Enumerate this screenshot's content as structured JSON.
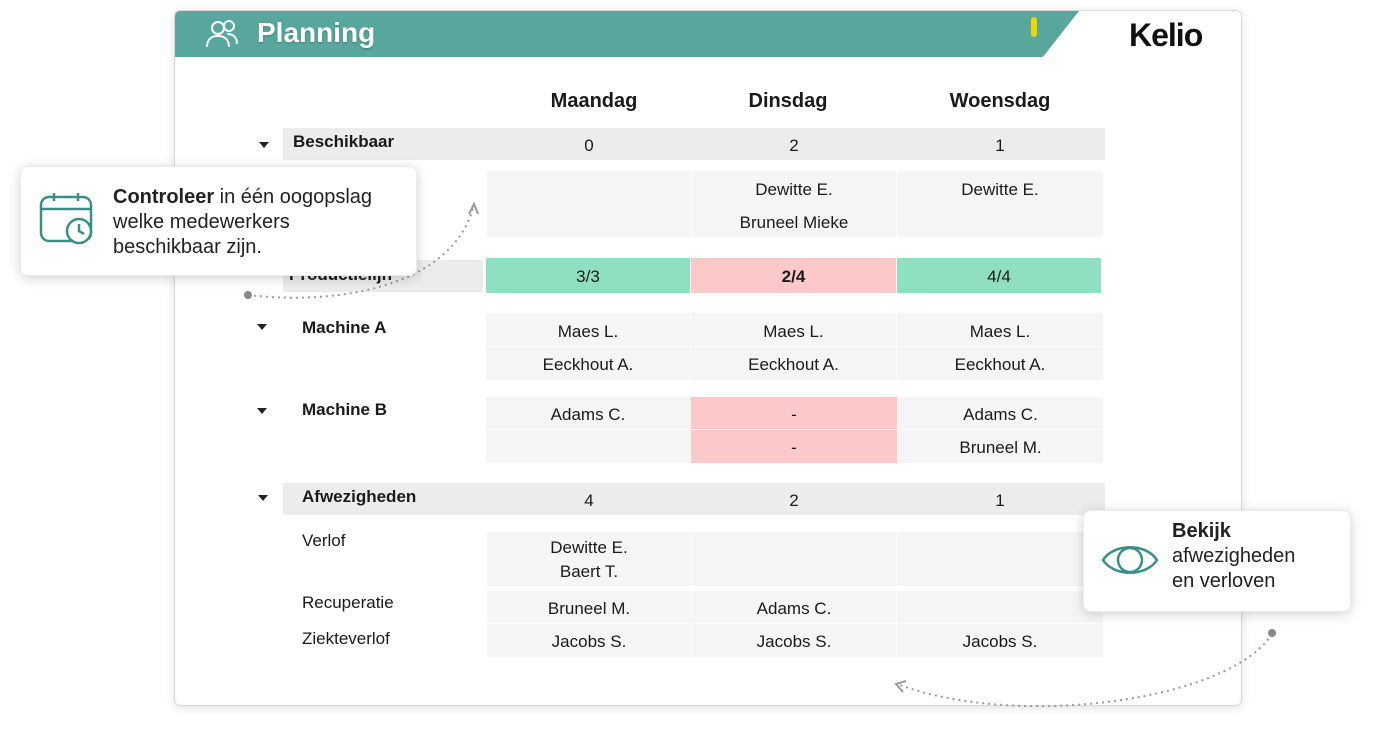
{
  "header": {
    "title": "Planning",
    "logo": "Kelio",
    "icon": "users-icon"
  },
  "days": [
    "Maandag",
    "Dinsdag",
    "Woensdag"
  ],
  "beschikbaar": {
    "label": "Beschikbaar",
    "counts": [
      "0",
      "2",
      "1"
    ],
    "names": [
      [],
      [
        "Dewitte E.",
        "Bruneel Mieke"
      ],
      [
        "Dewitte E."
      ]
    ]
  },
  "productielijn": {
    "label": "Productielijn",
    "values": [
      "3/3",
      "2/4",
      "4/4"
    ],
    "status_colors": [
      "#8fe0c0",
      "#fbc9c9",
      "#8fe0c0"
    ]
  },
  "machine_a": {
    "label": "Machine A",
    "rows": [
      [
        "Maes L.",
        "Maes L.",
        "Maes L."
      ],
      [
        "Eeckhout A.",
        "Eeckhout A.",
        "Eeckhout A."
      ]
    ]
  },
  "machine_b": {
    "label": "Machine B",
    "rows": [
      [
        "Adams C.",
        "-",
        "Adams C."
      ],
      [
        "",
        "-",
        "Bruneel M."
      ]
    ]
  },
  "afwezigheden": {
    "label": "Afwezigheden",
    "counts": [
      "4",
      "2",
      "1"
    ],
    "verlof": {
      "label": "Verlof",
      "cells": [
        [
          "Dewitte E.",
          "Baert T."
        ],
        [],
        []
      ]
    },
    "recuperatie": {
      "label": "Recuperatie",
      "cells": [
        "Bruneel M.",
        "Adams C.",
        ""
      ]
    },
    "ziekteverlof": {
      "label": "Ziekteverlof",
      "cells": [
        "Jacobs S.",
        "Jacobs S.",
        "Jacobs S."
      ]
    }
  },
  "callout_left": {
    "bold": "Controleer",
    "line1_rest": " in één oogopslag",
    "line2": "welke medewerkers",
    "line3": "beschikbaar zijn.",
    "icon": "calendar-clock-icon"
  },
  "callout_right": {
    "bold": "Bekijk",
    "line2": "afwezigheden",
    "line3": "en verloven",
    "icon": "eye-icon"
  },
  "colors": {
    "header": "#58a79c",
    "accent": "#3a8f84",
    "ok": "#8fe0c0",
    "short": "#fbc9c9"
  }
}
